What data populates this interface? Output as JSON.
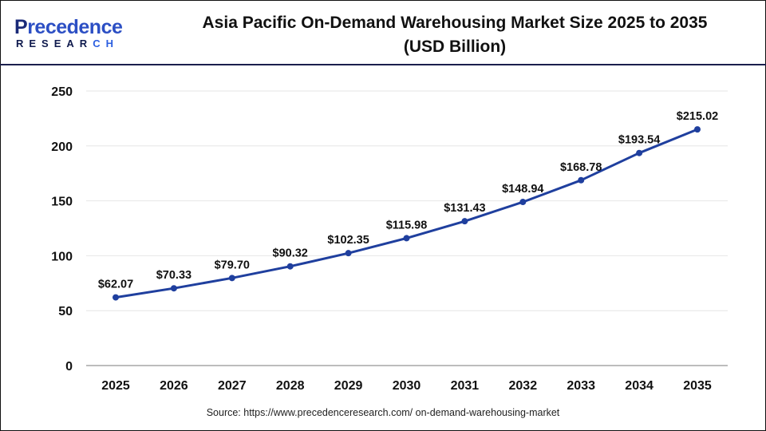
{
  "logo": {
    "line1_first": "P",
    "line1_rest": "recedence",
    "line2_main": "RESEAR",
    "line2_accent": "CH"
  },
  "header": {
    "title_line1": "Asia Pacific On-Demand Warehousing Market Size 2025 to 2035",
    "title_line2": "(USD Billion)"
  },
  "source": "Source: https://www.precedenceresearch.com/ on-demand-warehousing-market",
  "colors": {
    "line": "#1f3f9e",
    "marker": "#1f3f9e",
    "grid": "#e6e6e6",
    "axis": "#bdbdbd",
    "header_rule": "#1a1f4d"
  },
  "chart_data": {
    "type": "line",
    "title": "Asia Pacific On-Demand Warehousing Market Size 2025 to 2035 (USD Billion)",
    "xlabel": "",
    "ylabel": "",
    "categories": [
      "2025",
      "2026",
      "2027",
      "2028",
      "2029",
      "2030",
      "2031",
      "2032",
      "2033",
      "2034",
      "2035"
    ],
    "series": [
      {
        "name": "Market Size (USD Billion)",
        "values": [
          62.07,
          70.33,
          79.7,
          90.32,
          102.35,
          115.98,
          131.43,
          148.94,
          168.78,
          193.54,
          215.02
        ]
      }
    ],
    "data_labels": [
      "$62.07",
      "$70.33",
      "$79.70",
      "$90.32",
      "$102.35",
      "$115.98",
      "$131.43",
      "$148.94",
      "$168.78",
      "$193.54",
      "$215.02"
    ],
    "yticks": [
      0,
      50,
      100,
      150,
      200,
      250
    ],
    "ylim": [
      0,
      250
    ],
    "grid": true,
    "legend": "none"
  }
}
